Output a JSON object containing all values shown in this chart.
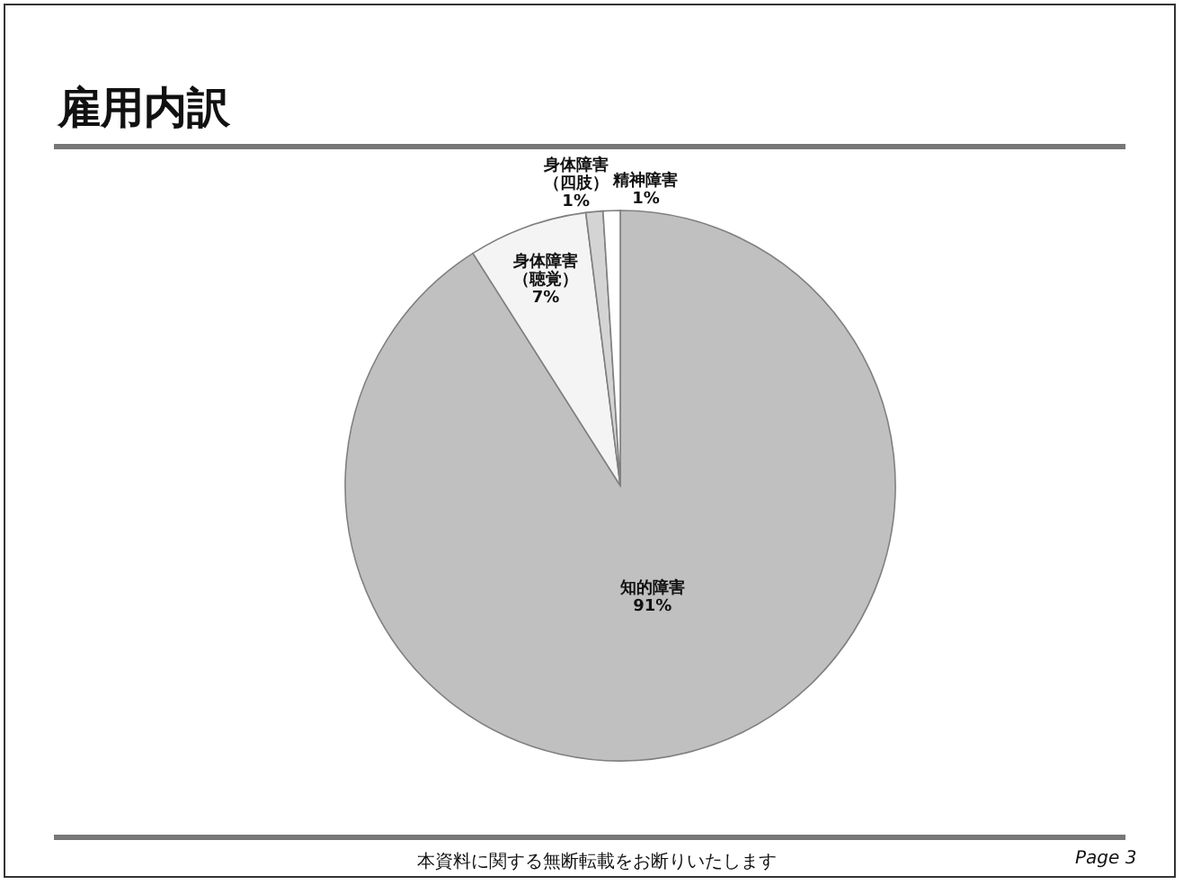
{
  "chart_data": {
    "type": "pie",
    "title": "雇用内訳",
    "categories": [
      "知的障害",
      "身体障害（聴覚）",
      "身体障害（四肢）",
      "精神障害"
    ],
    "values": [
      91,
      7,
      1,
      1
    ],
    "colors": [
      "#c0c0c0",
      "#f4f4f4",
      "#d4d4d4",
      "#ffffff"
    ],
    "value_labels": [
      "91%",
      "7%",
      "1%",
      "1%"
    ],
    "annotations": [
      "本資料に関する無断転載をお断りいたします",
      "Page 3"
    ]
  }
}
